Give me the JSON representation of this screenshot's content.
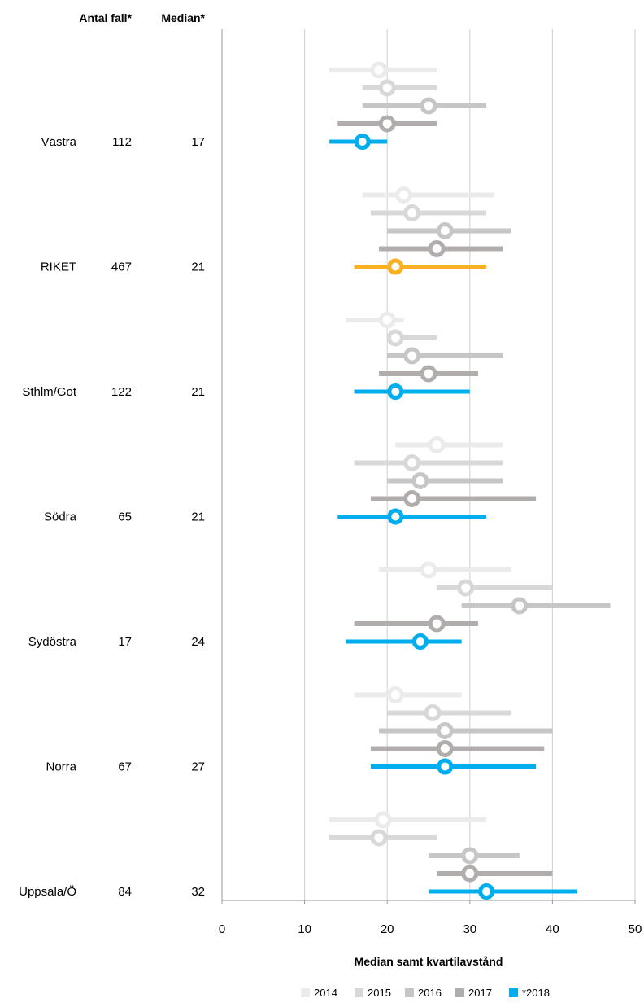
{
  "chart_data": {
    "type": "range-dot",
    "header": {
      "count_label": "Antal fall*",
      "median_label": "Median*"
    },
    "xlabel": "Median samt kvartilavstånd",
    "xlim": [
      0,
      50
    ],
    "xticks": [
      0,
      10,
      20,
      30,
      40,
      50
    ],
    "grid": "vertical",
    "legend_position": "bottom",
    "series": [
      {
        "name": "2014",
        "color": "#ebebeb"
      },
      {
        "name": "2015",
        "color": "#d8d8d8"
      },
      {
        "name": "2016",
        "color": "#c6c6c6"
      },
      {
        "name": "2017",
        "color": "#b1adad"
      },
      {
        "name": "*2018",
        "color": "#00aeef"
      }
    ],
    "highlight_color": "#fbb021",
    "groups": [
      {
        "region": "Västra",
        "count": "112",
        "median_text": "17",
        "points": [
          {
            "median": 19,
            "q1": 13,
            "q3": 26
          },
          {
            "median": 20,
            "q1": 17,
            "q3": 26
          },
          {
            "median": 25,
            "q1": 17,
            "q3": 32
          },
          {
            "median": 20,
            "q1": 14,
            "q3": 26
          },
          {
            "median": 17,
            "q1": 13,
            "q3": 20
          }
        ]
      },
      {
        "region": "RIKET",
        "count": "467",
        "median_text": "21",
        "highlight": true,
        "points": [
          {
            "median": 22,
            "q1": 17,
            "q3": 33
          },
          {
            "median": 23,
            "q1": 18,
            "q3": 32
          },
          {
            "median": 27,
            "q1": 20,
            "q3": 35
          },
          {
            "median": 26,
            "q1": 19,
            "q3": 34
          },
          {
            "median": 21,
            "q1": 16,
            "q3": 32
          }
        ]
      },
      {
        "region": "Sthlm/Got",
        "count": "122",
        "median_text": "21",
        "points": [
          {
            "median": 20,
            "q1": 15,
            "q3": 22
          },
          {
            "median": 21,
            "q1": 20,
            "q3": 26
          },
          {
            "median": 23,
            "q1": 20,
            "q3": 34
          },
          {
            "median": 25,
            "q1": 19,
            "q3": 31
          },
          {
            "median": 21,
            "q1": 16,
            "q3": 30
          }
        ]
      },
      {
        "region": "Södra",
        "count": "65",
        "median_text": "21",
        "points": [
          {
            "median": 26,
            "q1": 21,
            "q3": 34
          },
          {
            "median": 23,
            "q1": 16,
            "q3": 34
          },
          {
            "median": 24,
            "q1": 20,
            "q3": 34
          },
          {
            "median": 23,
            "q1": 18,
            "q3": 38
          },
          {
            "median": 21,
            "q1": 14,
            "q3": 32
          }
        ]
      },
      {
        "region": "Sydöstra",
        "count": "17",
        "median_text": "24",
        "points": [
          {
            "median": 25,
            "q1": 19,
            "q3": 35
          },
          {
            "median": 29.5,
            "q1": 26,
            "q3": 40
          },
          {
            "median": 36,
            "q1": 29,
            "q3": 47
          },
          {
            "median": 26,
            "q1": 16,
            "q3": 31
          },
          {
            "median": 24,
            "q1": 15,
            "q3": 29
          }
        ]
      },
      {
        "region": "Norra",
        "count": "67",
        "median_text": "27",
        "points": [
          {
            "median": 21,
            "q1": 16,
            "q3": 29
          },
          {
            "median": 25.5,
            "q1": 20,
            "q3": 35
          },
          {
            "median": 27,
            "q1": 19,
            "q3": 40
          },
          {
            "median": 27,
            "q1": 18,
            "q3": 39
          },
          {
            "median": 27,
            "q1": 18,
            "q3": 38
          }
        ]
      },
      {
        "region": "Uppsala/Ö",
        "count": "84",
        "median_text": "32",
        "points": [
          {
            "median": 19.5,
            "q1": 13,
            "q3": 32
          },
          {
            "median": 19,
            "q1": 13,
            "q3": 26
          },
          {
            "median": 30,
            "q1": 25,
            "q3": 36
          },
          {
            "median": 30,
            "q1": 26,
            "q3": 40
          },
          {
            "median": 32,
            "q1": 25,
            "q3": 43
          }
        ]
      }
    ]
  }
}
